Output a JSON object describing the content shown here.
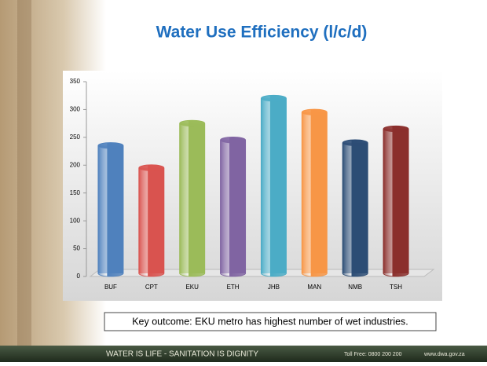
{
  "chart_data": {
    "type": "bar",
    "title": "Water Use Efficiency (l/c/d)",
    "categories": [
      "BUF",
      "CPT",
      "EKU",
      "ETH",
      "JHB",
      "MAN",
      "NMB",
      "TSH"
    ],
    "values": [
      235,
      195,
      275,
      245,
      320,
      295,
      240,
      265
    ],
    "colors": [
      "#4f81bd",
      "#d9534f",
      "#9bbb59",
      "#8064a2",
      "#4bacc6",
      "#f79646",
      "#2c4d75",
      "#8b2f2c"
    ],
    "ylim": [
      0,
      350
    ],
    "yticks": [
      0,
      50,
      100,
      150,
      200,
      250,
      300,
      350
    ],
    "grid": false
  },
  "note": "Key outcome: EKU metro has highest number of wet industries.",
  "footer": {
    "slogan": "WATER IS LIFE - SANITATION IS DIGNITY",
    "toll_free": "Toll Free: 0800 200 200",
    "website": "www.dwa.gov.za"
  }
}
